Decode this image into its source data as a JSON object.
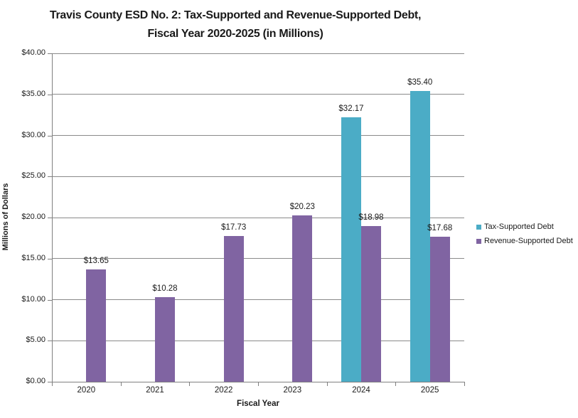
{
  "chart_data": {
    "type": "bar",
    "title": "Travis County ESD No. 2: Tax-Supported and Revenue-Supported Debt, Fiscal Year 2020-2025 (in Millions)",
    "title_lines": [
      "Travis County ESD No. 2: Tax-Supported and Revenue-Supported Debt,",
      "Fiscal Year 2020-2025 (in Millions)"
    ],
    "xlabel": "Fiscal Year",
    "ylabel": "Millions of Dollars",
    "categories": [
      "2020",
      "2021",
      "2022",
      "2023",
      "2024",
      "2025"
    ],
    "series": [
      {
        "name": "Tax-Supported Debt",
        "color": "#4BACC6",
        "values": [
          null,
          null,
          null,
          null,
          32.17,
          35.4
        ],
        "labels": [
          null,
          null,
          null,
          null,
          "$32.17",
          "$35.40"
        ]
      },
      {
        "name": "Revenue-Supported Debt",
        "color": "#8064A2",
        "values": [
          13.65,
          10.28,
          17.73,
          20.23,
          18.98,
          17.68
        ],
        "labels": [
          "$13.65",
          "$10.28",
          "$17.73",
          "$20.23",
          "$18.98",
          "$17.68"
        ]
      }
    ],
    "ylim": [
      0,
      40
    ],
    "ytick_step": 5,
    "ytick_labels": [
      "$0.00",
      "$5.00",
      "$10.00",
      "$15.00",
      "$20.00",
      "$25.00",
      "$30.00",
      "$35.00",
      "$40.00"
    ],
    "ytick_prefix": "$",
    "grid": true,
    "legend_position": "right",
    "axis_color": "#808080",
    "gridline_color": "#8A8A8A",
    "text_color": "#1a1a1a"
  }
}
